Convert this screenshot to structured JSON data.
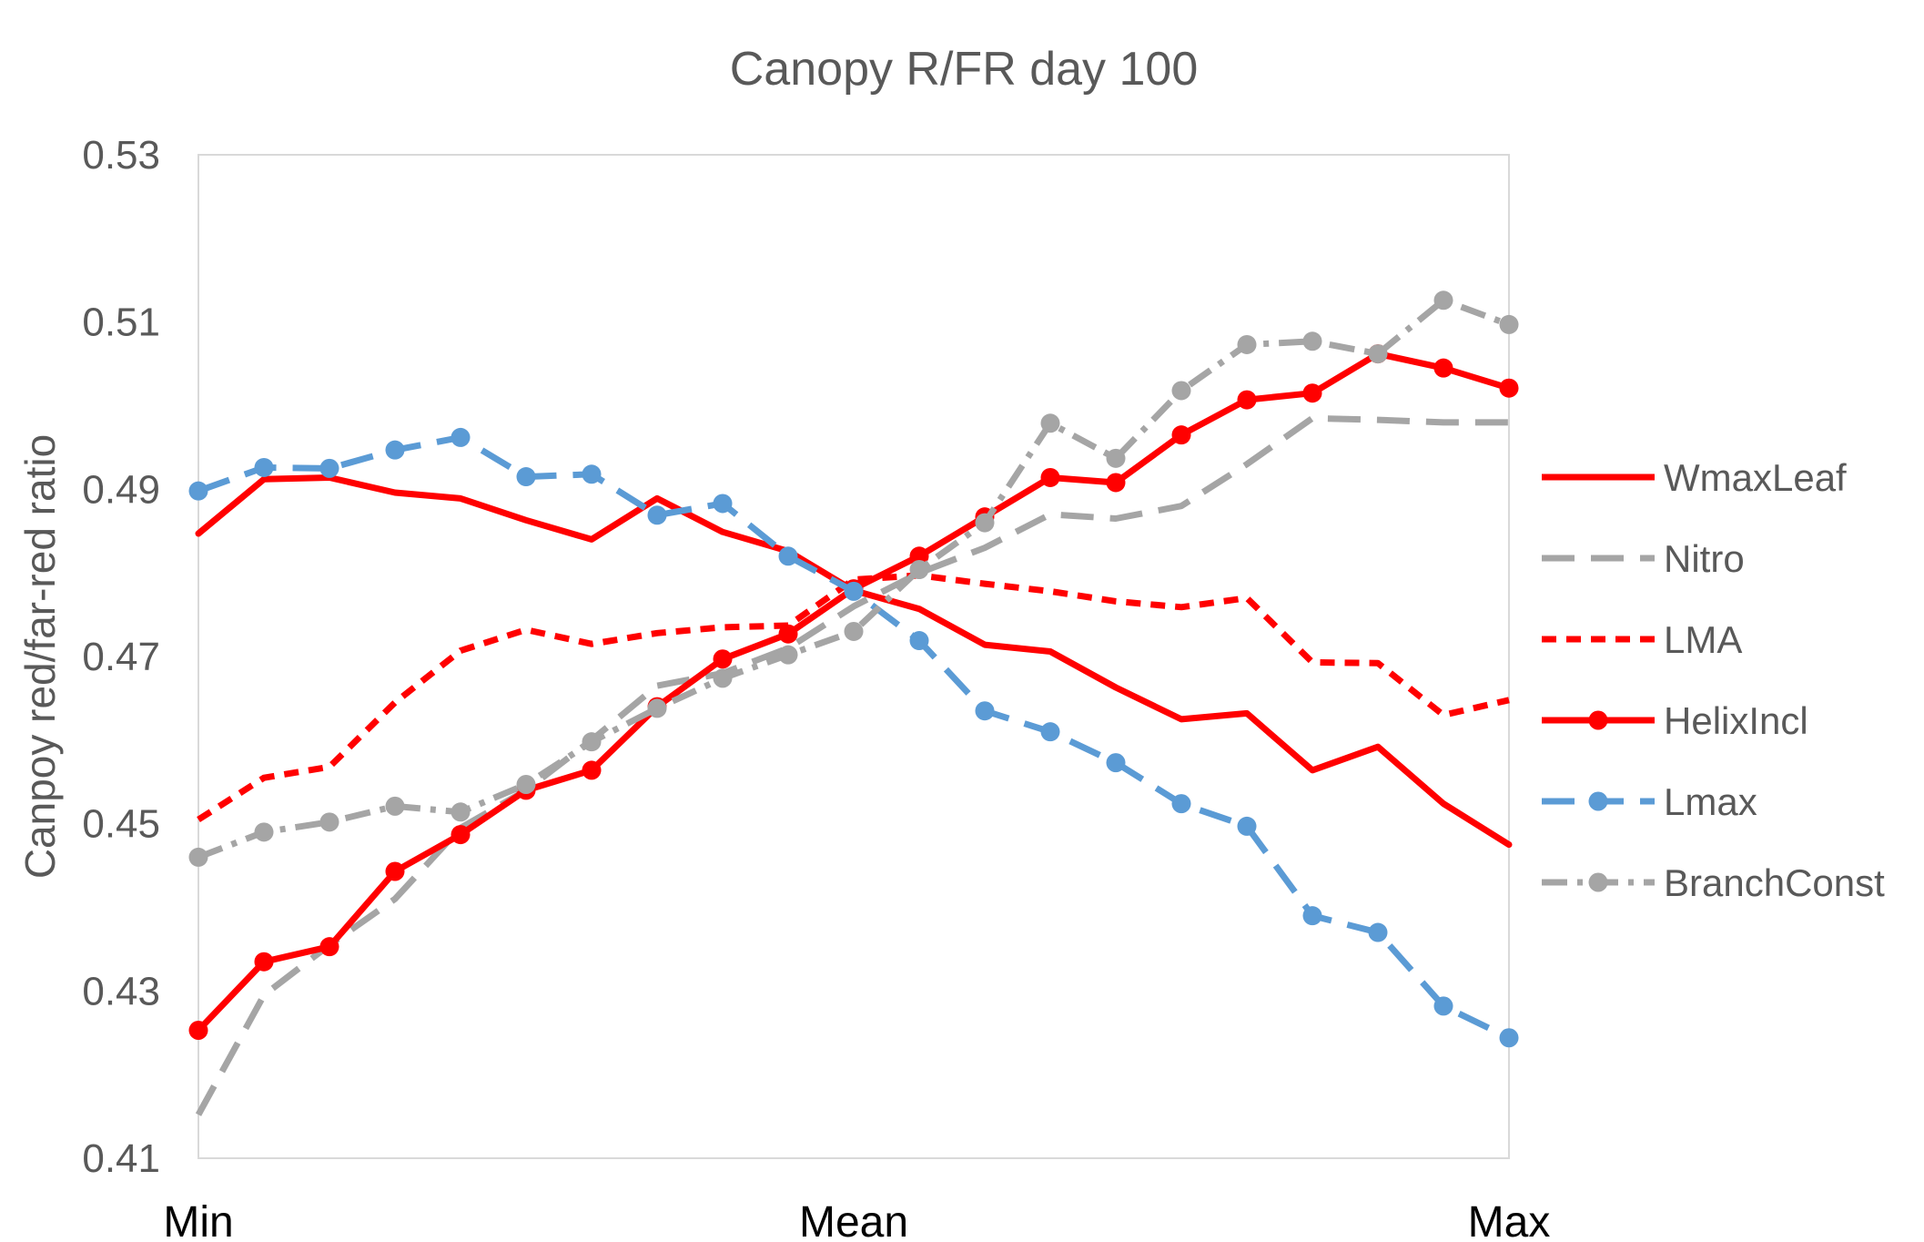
{
  "chart_data": {
    "type": "line",
    "title": "Canopy R/FR day 100",
    "ylabel": "Canpoy red/far-red ratio",
    "xlabel": "",
    "x_tick_labels": [
      "Min",
      "Mean",
      "Max"
    ],
    "y_tick_labels": [
      "0.53",
      "0.51",
      "0.49",
      "0.47",
      "0.45",
      "0.43",
      "0.41"
    ],
    "ylim": [
      0.41,
      0.53
    ],
    "x": [
      0,
      1,
      2,
      3,
      4,
      5,
      6,
      7,
      8,
      9,
      10,
      11,
      12,
      13,
      14,
      15,
      16,
      17,
      18,
      19,
      20
    ],
    "grid": false,
    "legend_position": "right",
    "series": [
      {
        "name": "WmaxLeaf",
        "color": "#FF0000",
        "dash": "solid",
        "marker": false,
        "values": [
          0.4847,
          0.4912,
          0.4914,
          0.4896,
          0.4889,
          0.4863,
          0.484,
          0.4889,
          0.4849,
          0.4826,
          0.4779,
          0.4757,
          0.4714,
          0.4706,
          0.4663,
          0.4625,
          0.4632,
          0.4564,
          0.4592,
          0.4524,
          0.4475
        ]
      },
      {
        "name": "Nitro",
        "color": "#A5A5A5",
        "dash": "long-dash",
        "marker": false,
        "values": [
          0.4152,
          0.4295,
          0.4355,
          0.441,
          0.4495,
          0.454,
          0.46,
          0.4665,
          0.468,
          0.471,
          0.476,
          0.48,
          0.483,
          0.487,
          0.4865,
          0.488,
          0.493,
          0.4985,
          0.4983,
          0.498,
          0.498
        ]
      },
      {
        "name": "LMA",
        "color": "#FF0000",
        "dash": "short-dash",
        "marker": false,
        "values": [
          0.4505,
          0.4555,
          0.4568,
          0.4645,
          0.4707,
          0.4732,
          0.4715,
          0.4728,
          0.4735,
          0.4737,
          0.4792,
          0.4797,
          0.4787,
          0.4778,
          0.4766,
          0.4759,
          0.477,
          0.4693,
          0.4692,
          0.463,
          0.4648
        ]
      },
      {
        "name": "HelixIncl",
        "color": "#FF0000",
        "dash": "solid",
        "marker": true,
        "values": [
          0.4253,
          0.4335,
          0.4353,
          0.4443,
          0.4487,
          0.454,
          0.4564,
          0.464,
          0.4697,
          0.4727,
          0.4781,
          0.482,
          0.4867,
          0.4914,
          0.4908,
          0.4965,
          0.5007,
          0.5015,
          0.5062,
          0.5045,
          0.5021
        ]
      },
      {
        "name": "Lmax",
        "color": "#5B9BD5",
        "dash": "long-dash",
        "marker": true,
        "values": [
          0.4898,
          0.4926,
          0.4925,
          0.4947,
          0.4962,
          0.4915,
          0.4918,
          0.4869,
          0.4883,
          0.482,
          0.4778,
          0.4719,
          0.4635,
          0.461,
          0.4573,
          0.4524,
          0.4497,
          0.439,
          0.437,
          0.4282,
          0.4244
        ]
      },
      {
        "name": "BranchConst",
        "color": "#A5A5A5",
        "dash": "dash-dot",
        "marker": true,
        "values": [
          0.446,
          0.449,
          0.4502,
          0.4521,
          0.4514,
          0.4547,
          0.4598,
          0.4638,
          0.4674,
          0.4702,
          0.473,
          0.4804,
          0.486,
          0.4979,
          0.4937,
          0.5018,
          0.5073,
          0.5077,
          0.5062,
          0.5126,
          0.5097
        ]
      }
    ]
  }
}
